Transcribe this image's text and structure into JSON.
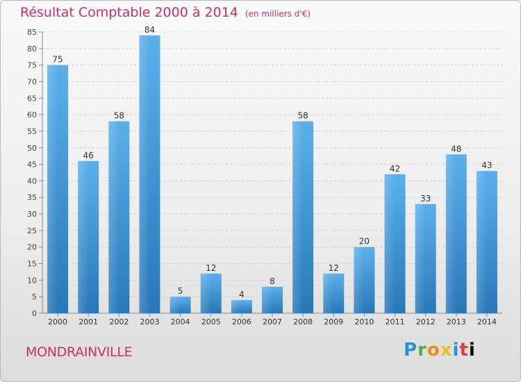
{
  "title": {
    "main": "Résultat Comptable 2000 à 2014",
    "unit": "(en milliers d'€)"
  },
  "commune": "MONDRAINVILLE",
  "logo": {
    "text": "Proxiti",
    "letters": [
      "P",
      "r",
      "o",
      "x",
      "i",
      "t",
      "i"
    ]
  },
  "colors": {
    "title": "#c8306a",
    "bar_light": "#5bb0ea",
    "bar_dark": "#2878b8"
  },
  "chart_data": {
    "type": "bar",
    "categories": [
      "2000",
      "2001",
      "2002",
      "2003",
      "2004",
      "2005",
      "2006",
      "2007",
      "2008",
      "2009",
      "2010",
      "2011",
      "2012",
      "2013",
      "2014"
    ],
    "values": [
      75,
      46,
      58,
      84,
      5,
      12,
      4,
      8,
      58,
      12,
      20,
      42,
      33,
      48,
      43
    ],
    "data_labels": [
      "75",
      "46",
      "58",
      "84",
      "5",
      "12",
      "4",
      "8",
      "58",
      "12",
      "20",
      "42",
      "33",
      "48",
      "43"
    ],
    "ylim": [
      0,
      85
    ],
    "yticks": [
      0,
      5,
      10,
      15,
      20,
      25,
      30,
      35,
      40,
      45,
      50,
      55,
      60,
      65,
      70,
      75,
      80,
      85
    ],
    "grid": true
  }
}
